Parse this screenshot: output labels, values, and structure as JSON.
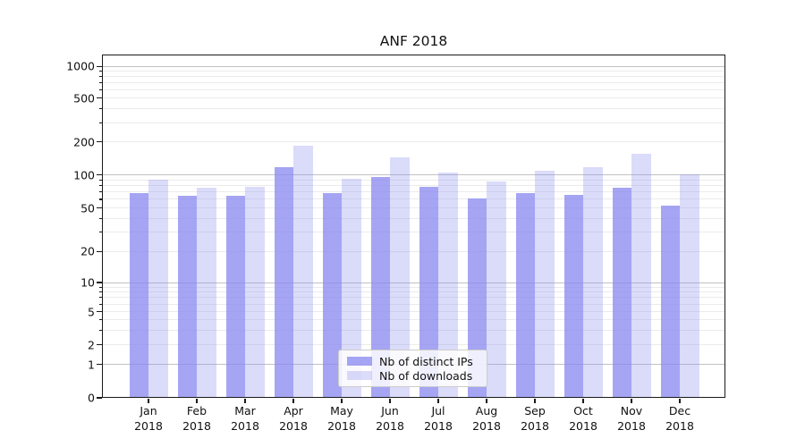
{
  "figure": {
    "title": "ANF 2018"
  },
  "chart_data": {
    "type": "bar",
    "title": "ANF 2018",
    "categories": [
      "Jan",
      "Feb",
      "Mar",
      "Apr",
      "May",
      "Jun",
      "Jul",
      "Aug",
      "Sep",
      "Oct",
      "Nov",
      "Dec"
    ],
    "x_tick_year": "2018",
    "series": [
      {
        "name": "Nb of distinct IPs",
        "color": "rgba(135,135,240,0.75)",
        "values": [
          68,
          65,
          65,
          118,
          68,
          96,
          78,
          61,
          69,
          66,
          76,
          53
        ]
      },
      {
        "name": "Nb of downloads",
        "color": "rgba(135,135,240,0.30)",
        "values": [
          91,
          76,
          78,
          186,
          93,
          146,
          105,
          88,
          109,
          117,
          156,
          102
        ]
      }
    ],
    "y_ticks": [
      0,
      1,
      2,
      5,
      10,
      20,
      50,
      100,
      200,
      500,
      1000
    ],
    "yscale": "symlog",
    "ylim": [
      0,
      1150
    ],
    "xlabel": "",
    "ylabel": "",
    "grid": true,
    "grid_minor": true,
    "legend_position": "lower-center-inside"
  },
  "colors": {
    "bar_base": "#8787f0",
    "grid_major": "#c2c2c2",
    "grid_minor": "#ebebeb",
    "axis": "#1a1a1a"
  }
}
